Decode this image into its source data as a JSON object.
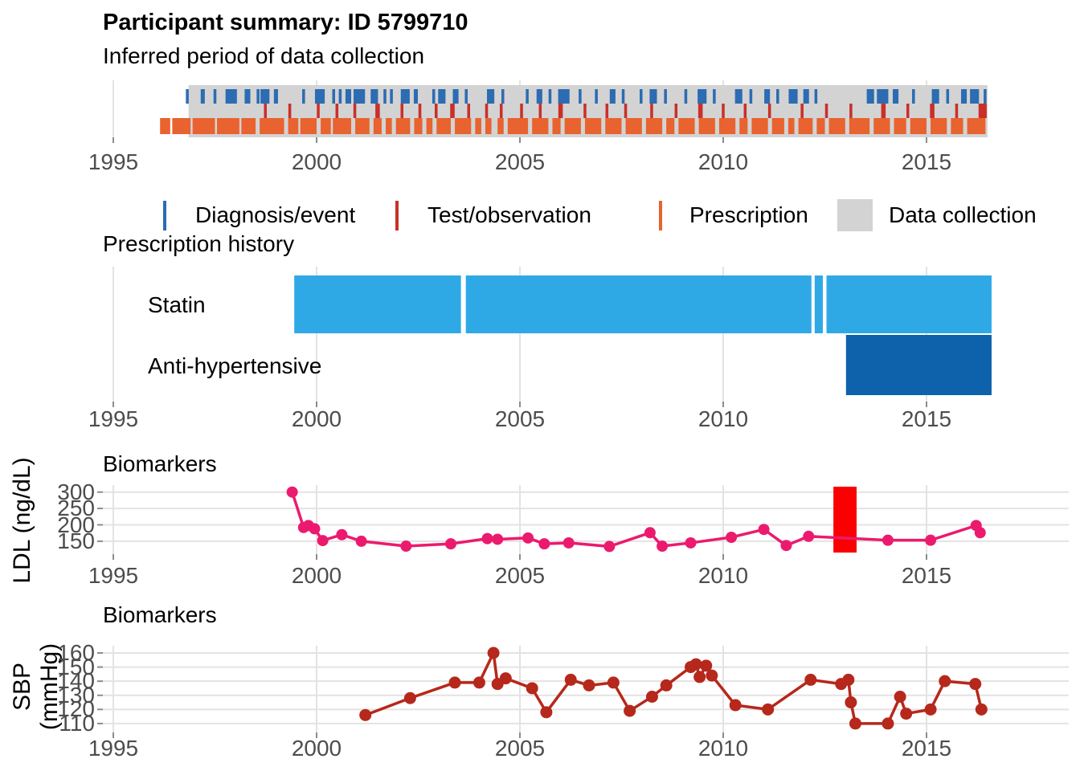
{
  "header": {
    "title": "Participant summary: ID 5799710",
    "subtitle": "Inferred period of data collection"
  },
  "colors": {
    "diagnosis": "#2b6cb3",
    "test": "#c9302a",
    "prescription": "#e8632f",
    "collection": "#d3d3d3",
    "statin": "#2fa9e6",
    "antihypertensive": "#0e62ab",
    "ldl": "#ec1a6e",
    "event_band": "#fb0000",
    "sbp": "#b6281b",
    "gridline": "#e3e3e3",
    "axis_text": "#4d4d4d",
    "tick_mark": "#8c8c8c"
  },
  "x_axis": {
    "tick_years": [
      1995,
      2000,
      2005,
      2010,
      2015
    ]
  },
  "chart_data": [
    {
      "type": "event-timeline",
      "title": "Inferred period of data collection",
      "x_range": [
        1994.7,
        2018.5
      ],
      "collection_period": [
        1996.85,
        2016.5
      ],
      "legend": [
        {
          "label": "Diagnosis/event",
          "swatch": "bar",
          "color_key": "diagnosis"
        },
        {
          "label": "Test/observation",
          "swatch": "bar",
          "color_key": "test"
        },
        {
          "label": "Prescription",
          "swatch": "bar",
          "color_key": "prescription"
        },
        {
          "label": "Data collection",
          "swatch": "box",
          "color_key": "collection"
        }
      ],
      "diagnosis_ticks": [
        [
          1996.82,
          0.07
        ],
        [
          1997.2,
          0.1
        ],
        [
          1997.5,
          0.07
        ],
        [
          1997.9,
          0.28
        ],
        [
          1998.3,
          0.14
        ],
        [
          1998.56,
          0.07
        ],
        [
          1998.73,
          0.22
        ],
        [
          1999.0,
          0.1
        ],
        [
          1999.68,
          0.07
        ],
        [
          2000.08,
          0.24
        ],
        [
          2000.42,
          0.07
        ],
        [
          2000.58,
          0.07
        ],
        [
          2000.78,
          0.14
        ],
        [
          2001.05,
          0.28
        ],
        [
          2001.42,
          0.18
        ],
        [
          2001.68,
          0.07
        ],
        [
          2001.84,
          0.07
        ],
        [
          2002.18,
          0.22
        ],
        [
          2002.44,
          0.1
        ],
        [
          2002.88,
          0.07
        ],
        [
          2003.08,
          0.18
        ],
        [
          2003.42,
          0.14
        ],
        [
          2003.68,
          0.07
        ],
        [
          2004.28,
          0.18
        ],
        [
          2004.58,
          0.07
        ],
        [
          2005.18,
          0.07
        ],
        [
          2005.48,
          0.14
        ],
        [
          2005.74,
          0.07
        ],
        [
          2006.08,
          0.28
        ],
        [
          2006.48,
          0.07
        ],
        [
          2006.88,
          0.07
        ],
        [
          2007.28,
          0.14
        ],
        [
          2007.54,
          0.07
        ],
        [
          2007.98,
          0.07
        ],
        [
          2008.28,
          0.18
        ],
        [
          2008.58,
          0.07
        ],
        [
          2009.08,
          0.07
        ],
        [
          2009.48,
          0.22
        ],
        [
          2009.78,
          0.07
        ],
        [
          2010.38,
          0.18
        ],
        [
          2010.68,
          0.07
        ],
        [
          2011.08,
          0.14
        ],
        [
          2011.34,
          0.07
        ],
        [
          2011.72,
          0.22
        ],
        [
          2012.04,
          0.14
        ],
        [
          2012.28,
          0.07
        ],
        [
          2013.62,
          0.18
        ],
        [
          2013.92,
          0.28
        ],
        [
          2014.24,
          0.14
        ],
        [
          2014.68,
          0.07
        ],
        [
          2015.22,
          0.18
        ],
        [
          2015.52,
          0.07
        ],
        [
          2015.92,
          0.14
        ],
        [
          2016.18,
          0.22
        ],
        [
          2016.44,
          0.07
        ]
      ],
      "test_ticks": [
        [
          1998.74,
          0.07
        ],
        [
          1999.34,
          0.07
        ],
        [
          2000.04,
          0.07
        ],
        [
          2000.5,
          0.07
        ],
        [
          2000.94,
          0.07
        ],
        [
          2001.5,
          0.11
        ],
        [
          2002.1,
          0.07
        ],
        [
          2002.54,
          0.07
        ],
        [
          2002.94,
          0.07
        ],
        [
          2003.34,
          0.11
        ],
        [
          2003.74,
          0.07
        ],
        [
          2004.18,
          0.07
        ],
        [
          2004.54,
          0.07
        ],
        [
          2005.04,
          0.07
        ],
        [
          2005.5,
          0.07
        ],
        [
          2006.0,
          0.11
        ],
        [
          2006.6,
          0.07
        ],
        [
          2007.14,
          0.07
        ],
        [
          2007.6,
          0.07
        ],
        [
          2008.24,
          0.07
        ],
        [
          2008.84,
          0.07
        ],
        [
          2009.44,
          0.11
        ],
        [
          2010.0,
          0.07
        ],
        [
          2010.54,
          0.07
        ],
        [
          2011.14,
          0.07
        ],
        [
          2011.94,
          0.07
        ],
        [
          2012.54,
          0.07
        ],
        [
          2013.14,
          0.07
        ],
        [
          2013.94,
          0.11
        ],
        [
          2014.54,
          0.07
        ],
        [
          2015.14,
          0.11
        ],
        [
          2015.74,
          0.07
        ],
        [
          2016.38,
          0.2
        ]
      ],
      "prescription_segments": [
        [
          1996.15,
          1996.4
        ],
        [
          1996.45,
          1996.9
        ],
        [
          1996.95,
          1997.5
        ],
        [
          1997.55,
          1998.1
        ],
        [
          1998.15,
          1998.5
        ],
        [
          1998.6,
          1999.2
        ],
        [
          1999.3,
          1999.55
        ],
        [
          1999.6,
          2000.0
        ],
        [
          2000.1,
          2000.35
        ],
        [
          2000.4,
          2000.85
        ],
        [
          2000.95,
          2001.3
        ],
        [
          2001.4,
          2001.6
        ],
        [
          2001.7,
          2001.85
        ],
        [
          2001.95,
          2002.3
        ],
        [
          2002.4,
          2002.6
        ],
        [
          2002.7,
          2002.85
        ],
        [
          2002.95,
          2003.3
        ],
        [
          2003.4,
          2003.8
        ],
        [
          2003.9,
          2004.05
        ],
        [
          2004.15,
          2004.3
        ],
        [
          2004.45,
          2004.6
        ],
        [
          2004.7,
          2005.2
        ],
        [
          2005.3,
          2005.7
        ],
        [
          2005.8,
          2006.0
        ],
        [
          2006.1,
          2006.5
        ],
        [
          2006.6,
          2007.0
        ],
        [
          2007.1,
          2007.5
        ],
        [
          2007.6,
          2008.0
        ],
        [
          2008.1,
          2008.5
        ],
        [
          2008.6,
          2008.8
        ],
        [
          2008.9,
          2009.3
        ],
        [
          2009.4,
          2009.8
        ],
        [
          2009.9,
          2010.3
        ],
        [
          2010.4,
          2010.6
        ],
        [
          2010.7,
          2011.1
        ],
        [
          2011.2,
          2011.5
        ],
        [
          2011.6,
          2011.75
        ],
        [
          2011.85,
          2012.2
        ],
        [
          2012.3,
          2012.5
        ],
        [
          2012.6,
          2013.0
        ],
        [
          2013.1,
          2013.6
        ],
        [
          2013.7,
          2014.1
        ],
        [
          2014.2,
          2014.5
        ],
        [
          2014.6,
          2015.0
        ],
        [
          2015.1,
          2015.5
        ],
        [
          2015.6,
          2015.9
        ],
        [
          2016.0,
          2016.45
        ]
      ]
    },
    {
      "type": "gantt",
      "title": "Prescription history",
      "rows": [
        {
          "label": "Statin",
          "color_key": "statin",
          "segments": [
            [
              1999.45,
              2003.55
            ],
            [
              2003.67,
              2012.17
            ],
            [
              2012.25,
              2012.45
            ],
            [
              2012.54,
              2016.6
            ]
          ]
        },
        {
          "label": "Anti-hypertensive",
          "color_key": "antihypertensive",
          "segments": [
            [
              2013.02,
              2016.6
            ]
          ]
        }
      ]
    },
    {
      "type": "line",
      "title": "Biomarkers",
      "ylabel": "LDL (ng/dL)",
      "yticks": [
        300,
        250,
        200,
        150
      ],
      "ylim": [
        125,
        310
      ],
      "series_color_key": "ldl",
      "event_band": [
        2012.71,
        2013.28
      ],
      "x": [
        1999.4,
        1999.68,
        1999.8,
        1999.95,
        2000.15,
        2000.62,
        2001.1,
        2002.2,
        2003.3,
        2004.2,
        2004.45,
        2005.2,
        2005.6,
        2006.2,
        2007.2,
        2008.2,
        2008.5,
        2009.2,
        2010.2,
        2011.0,
        2011.55,
        2012.1,
        2014.05,
        2015.1,
        2016.22,
        2016.32
      ],
      "y": [
        300,
        192,
        198,
        188,
        152,
        170,
        150,
        135,
        142,
        158,
        156,
        160,
        142,
        145,
        134,
        176,
        135,
        145,
        162,
        186,
        137,
        165,
        153,
        153,
        198,
        176
      ]
    },
    {
      "type": "line",
      "title": "Biomarkers",
      "ylabel": "SBP (mmHg)",
      "yticks": [
        160,
        150,
        140,
        130,
        120,
        110
      ],
      "ylim": [
        105,
        165
      ],
      "series_color_key": "sbp",
      "x": [
        2001.2,
        2002.3,
        2003.4,
        2004.0,
        2004.35,
        2004.45,
        2004.65,
        2005.3,
        2005.65,
        2006.25,
        2006.7,
        2007.3,
        2007.7,
        2008.25,
        2008.6,
        2009.2,
        2009.33,
        2009.42,
        2009.58,
        2009.72,
        2010.3,
        2011.1,
        2012.15,
        2012.9,
        2013.08,
        2013.14,
        2013.25,
        2014.05,
        2014.35,
        2014.5,
        2015.1,
        2015.45,
        2016.2,
        2016.35
      ],
      "y": [
        116,
        128,
        139,
        139,
        160,
        138,
        142,
        135,
        118,
        141,
        137,
        139,
        119,
        129,
        137,
        150,
        152,
        143,
        151,
        144,
        123,
        120,
        141,
        138,
        141,
        125,
        110,
        110,
        129,
        117,
        120,
        140,
        138,
        120
      ]
    }
  ]
}
